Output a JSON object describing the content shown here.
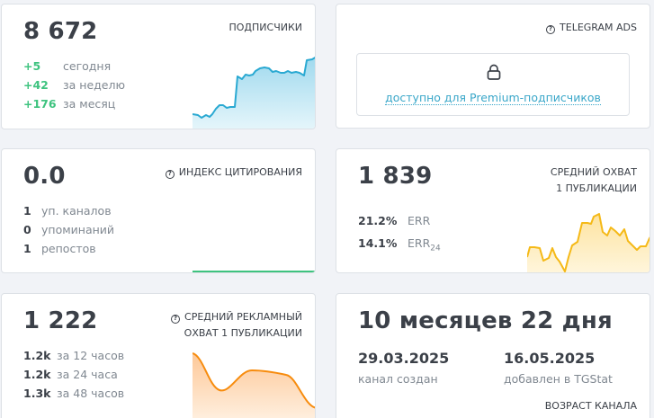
{
  "subscribers": {
    "title": "ПОДПИСЧИКИ",
    "value": "8 672",
    "rows": [
      {
        "value": "+5",
        "label": "сегодня"
      },
      {
        "value": "+42",
        "label": "за неделю"
      },
      {
        "value": "+176",
        "label": "за месяц"
      }
    ],
    "color": "#2aa9d2"
  },
  "telegram_ads": {
    "title": "TELEGRAM ADS",
    "help_icon": "question-circle-icon",
    "lock_icon": "lock-icon",
    "link": "доступно для Premium-подписчиков"
  },
  "citation": {
    "title": "ИНДЕКС ЦИТИРОВАНИЯ",
    "help_icon": "question-circle-icon",
    "value": "0.0",
    "rows": [
      {
        "value": "1",
        "label": "уп. каналов"
      },
      {
        "value": "0",
        "label": "упоминаний"
      },
      {
        "value": "1",
        "label": "репостов"
      }
    ],
    "color": "#3ec37f"
  },
  "avg_reach": {
    "title_line1": "СРЕДНИЙ ОХВАТ",
    "title_line2": "1 ПУБЛИКАЦИИ",
    "value": "1 839",
    "rows": [
      {
        "value": "21.2%",
        "label": "ERR",
        "sub": ""
      },
      {
        "value": "14.1%",
        "label": "ERR",
        "sub": "24"
      }
    ],
    "color": "#f5b917"
  },
  "ad_reach": {
    "title_line1": "СРЕДНИЙ РЕКЛАМНЫЙ",
    "title_line2": "ОХВАТ 1 ПУБЛИКАЦИИ",
    "help_icon": "question-circle-icon",
    "value": "1 222",
    "rows": [
      {
        "value": "1.2k",
        "label": "за 12 часов"
      },
      {
        "value": "1.2k",
        "label": "за 24 часа"
      },
      {
        "value": "1.3k",
        "label": "за 48 часов"
      }
    ],
    "color": "#f78c0e"
  },
  "channel_age": {
    "value": "10 месяцев 22 дня",
    "created_date": "29.03.2025",
    "created_label": "канал создан",
    "added_date": "16.05.2025",
    "added_label": "добавлен в TGStat",
    "title": "ВОЗРАСТ КАНАЛА"
  }
}
